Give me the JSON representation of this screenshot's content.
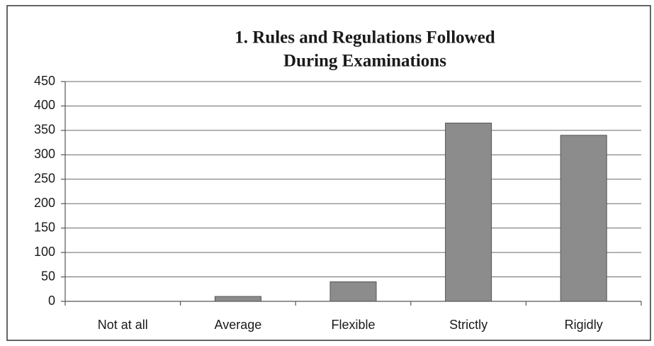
{
  "chart_data": {
    "type": "bar",
    "title": [
      "1. Rules and Regulations Followed",
      "During Examinations"
    ],
    "categories": [
      "Not at all",
      "Average",
      "Flexible",
      "Strictly",
      "Rigidly"
    ],
    "values": [
      0,
      10,
      40,
      365,
      340
    ],
    "color": "#8c8c8c",
    "ylim": [
      0,
      450
    ],
    "yticks": [
      0,
      50,
      100,
      150,
      200,
      250,
      300,
      350,
      400,
      450
    ],
    "grid": true
  }
}
